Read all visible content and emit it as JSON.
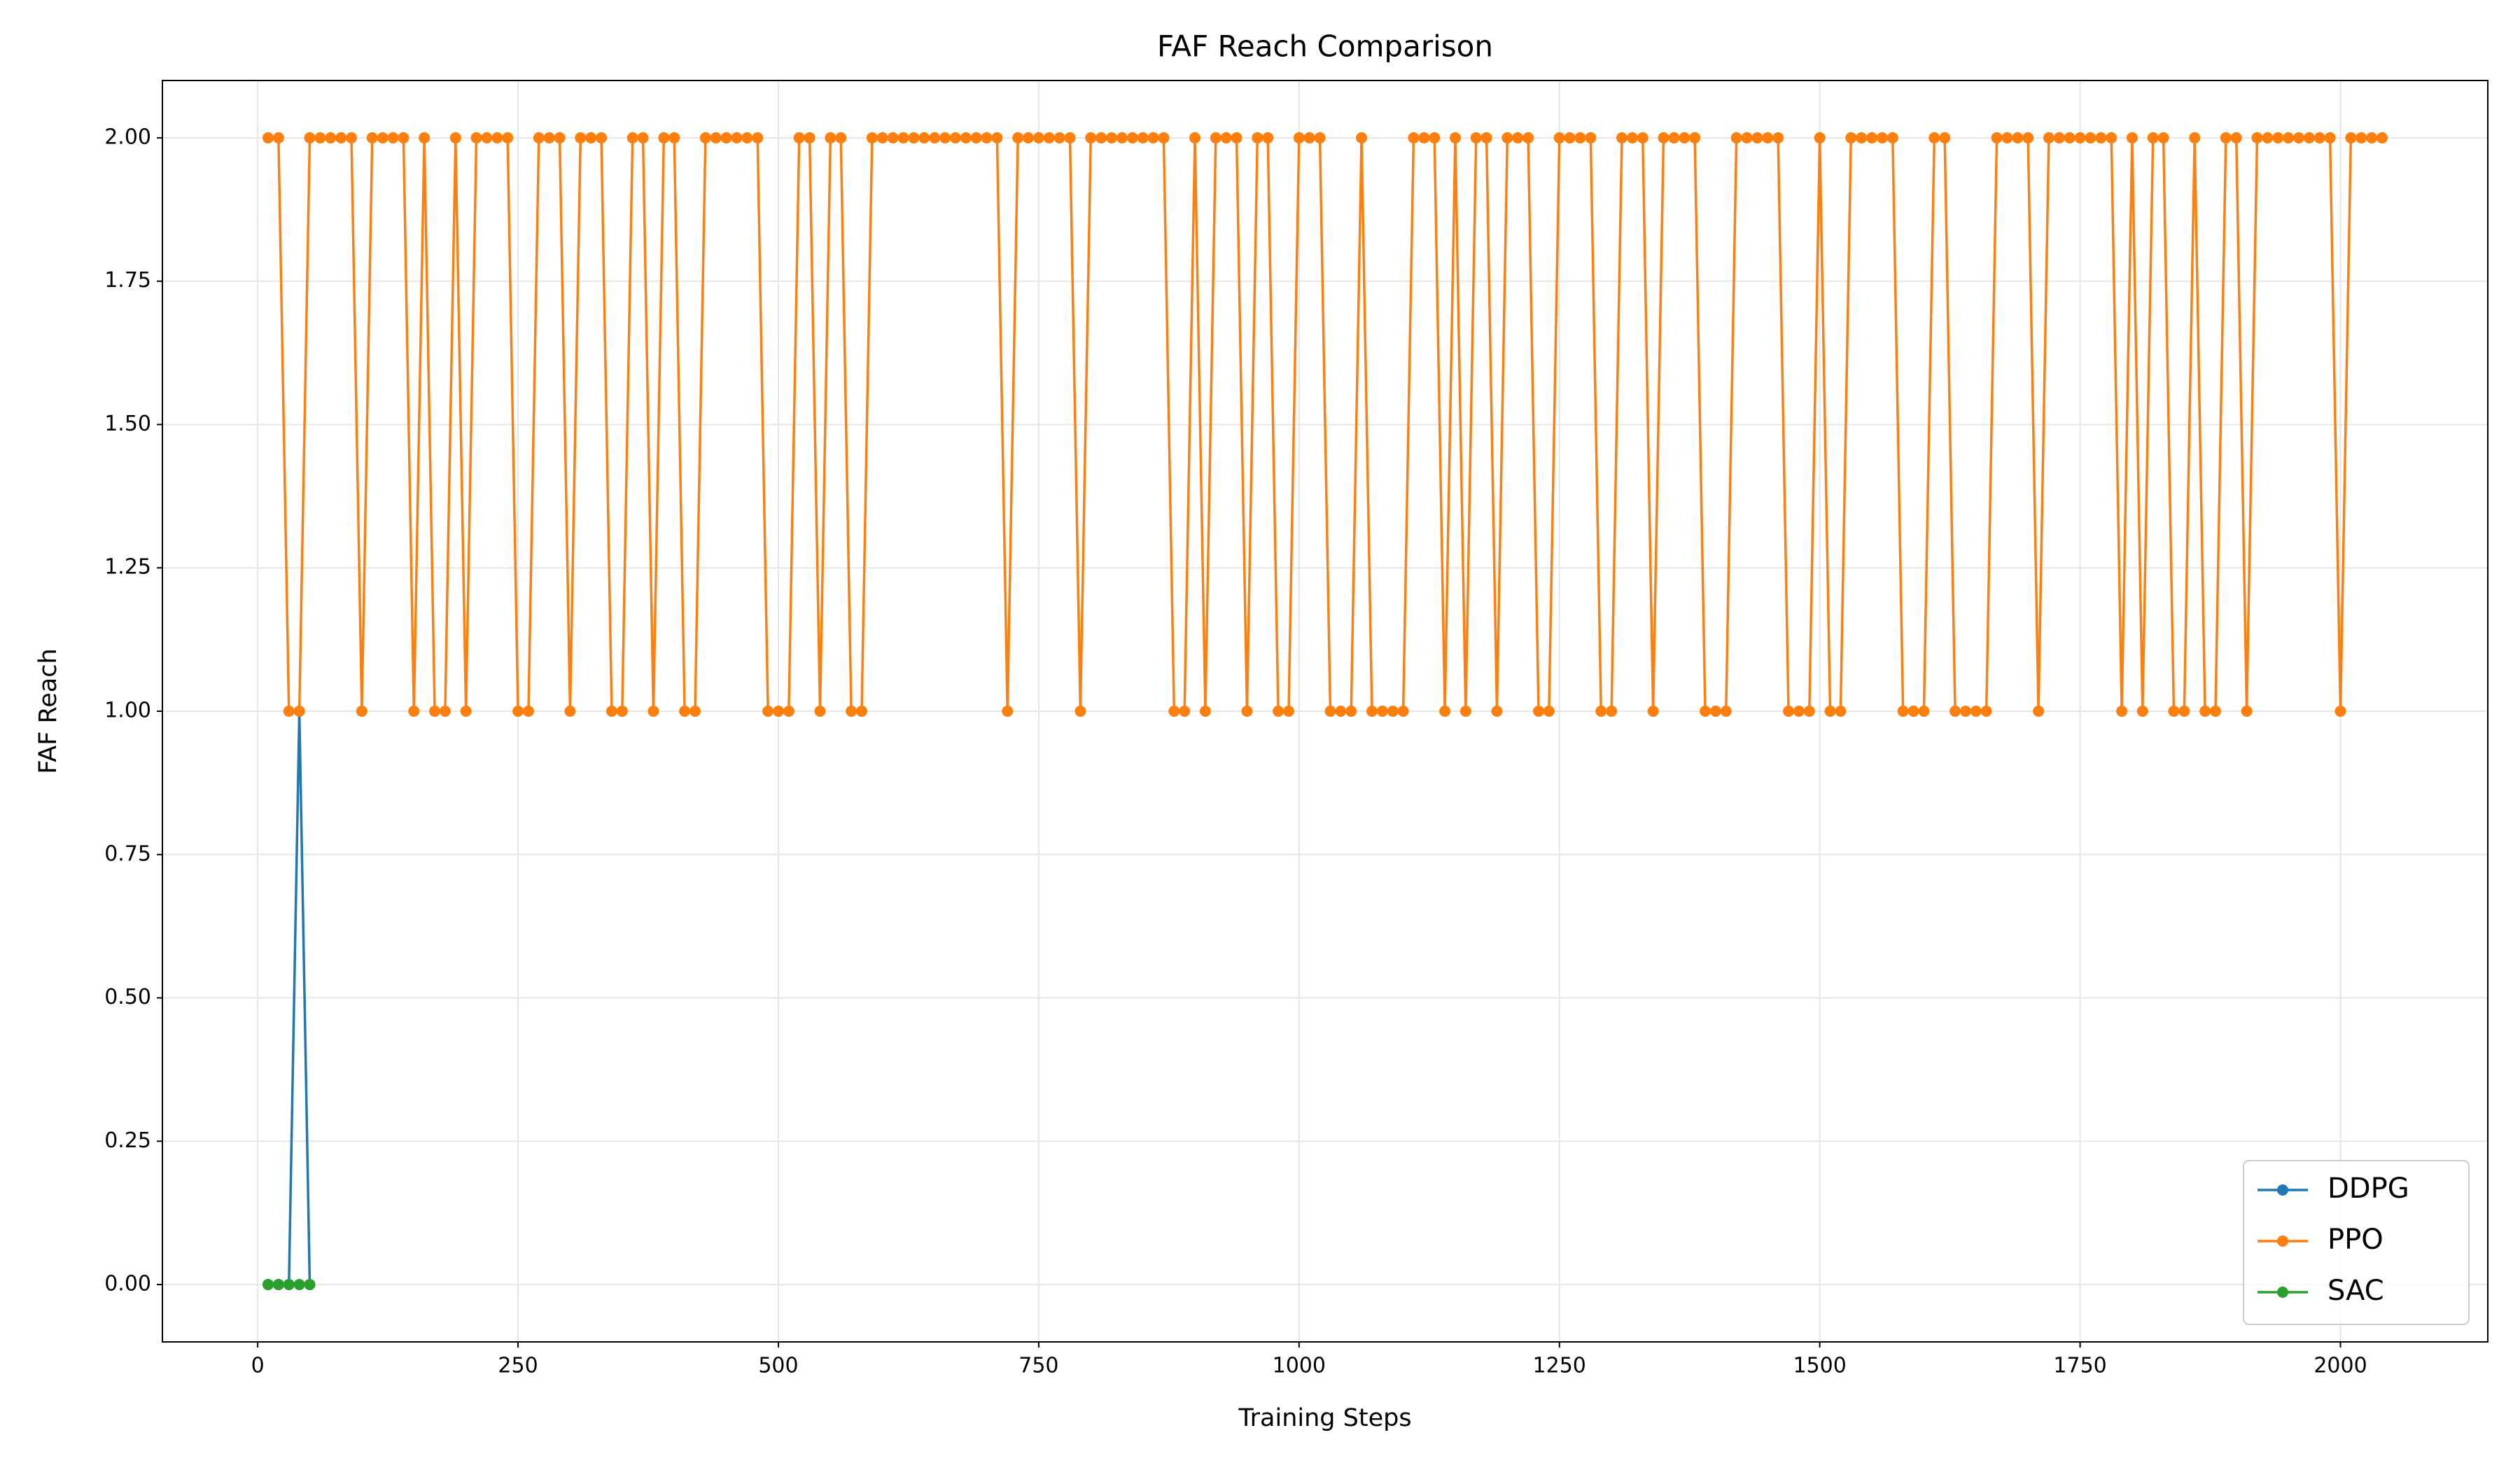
{
  "chart_data": {
    "type": "line",
    "title": "FAF Reach Comparison",
    "x_label": "Training Steps",
    "y_label": "FAF Reach",
    "xlim": [
      -91.5,
      2141.5
    ],
    "xticks": [
      0,
      250,
      500,
      750,
      1000,
      1250,
      1500,
      1750,
      2000
    ],
    "ylim": [
      -0.1,
      2.1
    ],
    "yticks": [
      {
        "value": 0,
        "label": "0.00"
      },
      {
        "value": 0.25,
        "label": "0.25"
      },
      {
        "value": 0.5,
        "label": "0.50"
      },
      {
        "value": 0.75,
        "label": "0.75"
      },
      {
        "value": 1,
        "label": "1.00"
      },
      {
        "value": 1.25,
        "label": "1.25"
      },
      {
        "value": 1.5,
        "label": "1.50"
      },
      {
        "value": 1.75,
        "label": "1.75"
      },
      {
        "value": 2,
        "label": "2.00"
      }
    ],
    "grid": true,
    "legend": "lower right",
    "series": [
      {
        "name": "DDPG",
        "color": "#1f77b4",
        "x": [
          10,
          20,
          30,
          40,
          50
        ],
        "values": [
          0,
          0,
          0,
          1,
          0
        ]
      },
      {
        "name": "PPO",
        "color": "#ff7f0e",
        "x": [
          10,
          20,
          30,
          40,
          50,
          60,
          70,
          80,
          90,
          100,
          110,
          120,
          130,
          140,
          150,
          160,
          170,
          180,
          190,
          200,
          210,
          220,
          230,
          240,
          250,
          260,
          270,
          280,
          290,
          300,
          310,
          320,
          330,
          340,
          350,
          360,
          370,
          380,
          390,
          400,
          410,
          420,
          430,
          440,
          450,
          460,
          470,
          480,
          490,
          500,
          510,
          520,
          530,
          540,
          550,
          560,
          570,
          580,
          590,
          600,
          610,
          620,
          630,
          640,
          650,
          660,
          670,
          680,
          690,
          700,
          710,
          720,
          730,
          740,
          750,
          760,
          770,
          780,
          790,
          800,
          810,
          820,
          830,
          840,
          850,
          860,
          870,
          880,
          890,
          900,
          910,
          920,
          930,
          940,
          950,
          960,
          970,
          980,
          990,
          1000,
          1010,
          1020,
          1030,
          1040,
          1050,
          1060,
          1070,
          1080,
          1090,
          1100,
          1110,
          1120,
          1130,
          1140,
          1150,
          1160,
          1170,
          1180,
          1190,
          1200,
          1210,
          1220,
          1230,
          1240,
          1250,
          1260,
          1270,
          1280,
          1290,
          1300,
          1310,
          1320,
          1330,
          1340,
          1350,
          1360,
          1370,
          1380,
          1390,
          1400,
          1410,
          1420,
          1430,
          1440,
          1450,
          1460,
          1470,
          1480,
          1490,
          1500,
          1510,
          1520,
          1530,
          1540,
          1550,
          1560,
          1570,
          1580,
          1590,
          1600,
          1610,
          1620,
          1630,
          1640,
          1650,
          1660,
          1670,
          1680,
          1690,
          1700,
          1710,
          1720,
          1730,
          1740,
          1750,
          1760,
          1770,
          1780,
          1790,
          1800,
          1810,
          1820,
          1830,
          1840,
          1850,
          1860,
          1870,
          1880,
          1890,
          1900,
          1910,
          1920,
          1930,
          1940,
          1950,
          1960,
          1970,
          1980,
          1990,
          2000,
          2010,
          2020,
          2030,
          2040
        ],
        "values": [
          2,
          2,
          1,
          1,
          2,
          2,
          2,
          2,
          2,
          1,
          2,
          2,
          2,
          2,
          1,
          2,
          1,
          1,
          2,
          1,
          2,
          2,
          2,
          2,
          1,
          1,
          2,
          2,
          2,
          1,
          2,
          2,
          2,
          1,
          1,
          2,
          2,
          1,
          2,
          2,
          1,
          1,
          2,
          2,
          2,
          2,
          2,
          2,
          1,
          1,
          1,
          2,
          2,
          1,
          2,
          2,
          1,
          1,
          2,
          2,
          2,
          2,
          2,
          2,
          2,
          2,
          2,
          2,
          2,
          2,
          2,
          1,
          2,
          2,
          2,
          2,
          2,
          2,
          1,
          2,
          2,
          2,
          2,
          2,
          2,
          2,
          2,
          1,
          1,
          2,
          1,
          2,
          2,
          2,
          1,
          2,
          2,
          1,
          1,
          2,
          2,
          2,
          1,
          1,
          1,
          2,
          1,
          1,
          1,
          1,
          2,
          2,
          2,
          1,
          2,
          1,
          2,
          2,
          1,
          2,
          2,
          2,
          1,
          1,
          2,
          2,
          2,
          2,
          1,
          1,
          2,
          2,
          2,
          1,
          2,
          2,
          2,
          2,
          1,
          1,
          1,
          2,
          2,
          2,
          2,
          2,
          1,
          1,
          1,
          2,
          1,
          1,
          2,
          2,
          2,
          2,
          2,
          1,
          1,
          1,
          2,
          2,
          1,
          1,
          1,
          1,
          2,
          2,
          2,
          2,
          1,
          2,
          2,
          2,
          2,
          2,
          2,
          2,
          1,
          2,
          1,
          2,
          2,
          1,
          1,
          2,
          1,
          1,
          2,
          2,
          1,
          2,
          2,
          2,
          2,
          2,
          2,
          2,
          2,
          1,
          2,
          2,
          2,
          2
        ]
      },
      {
        "name": "SAC",
        "color": "#2ca02c",
        "x": [
          10,
          20,
          30,
          40,
          50
        ],
        "values": [
          0,
          0,
          0,
          0,
          0
        ]
      }
    ]
  }
}
